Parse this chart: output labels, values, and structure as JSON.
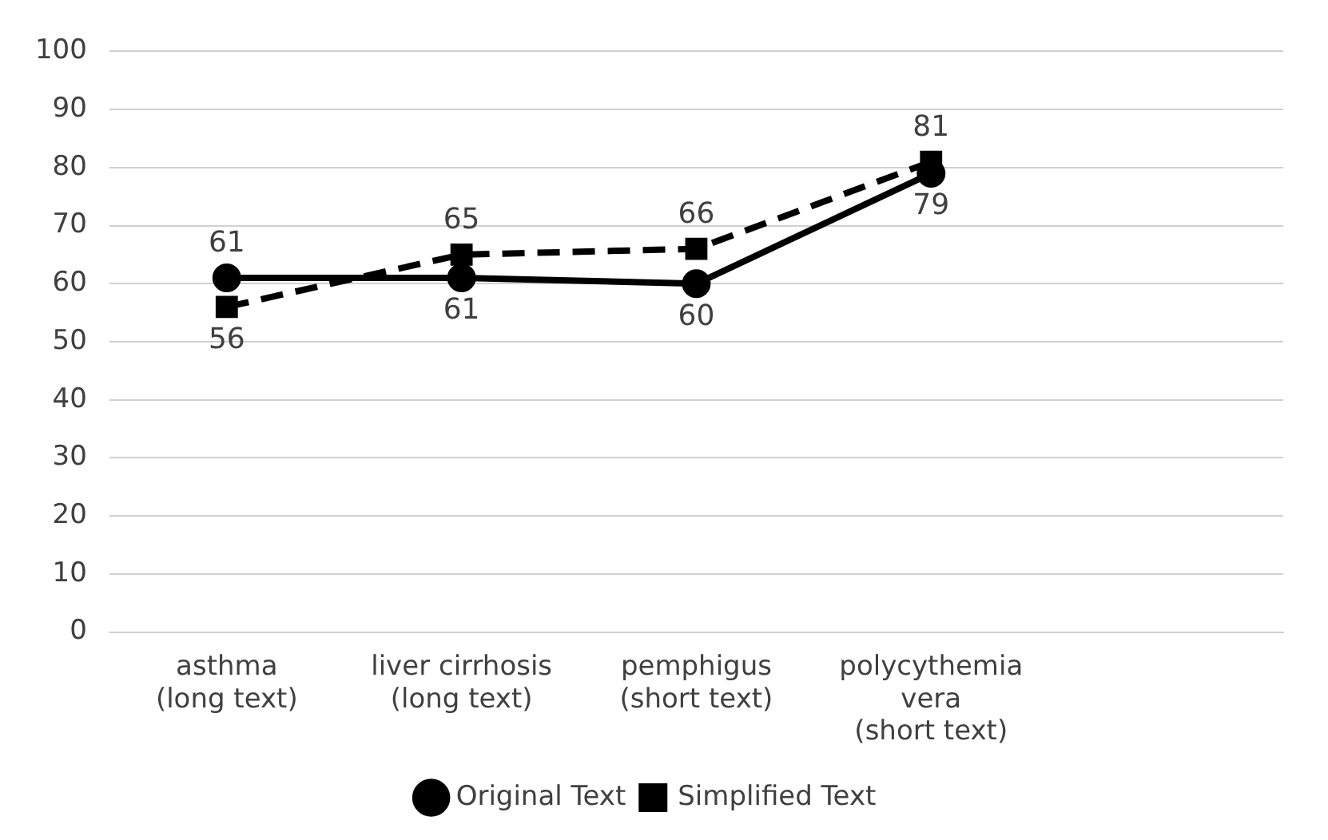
{
  "chart_data": {
    "type": "line",
    "categories": [
      "asthma\n(long text)",
      "liver cirrhosis\n(long text)",
      "pemphigus\n(short text)",
      "polycythemia\nvera\n(short text)",
      null
    ],
    "series": [
      {
        "name": "Original Text",
        "color": "#000000",
        "marker": "circle",
        "line_style": "solid",
        "values": [
          61,
          61,
          60,
          79,
          null
        ]
      },
      {
        "name": "Simplified Text",
        "color": "#000000",
        "marker": "square",
        "line_style": "dashed",
        "values": [
          56,
          65,
          66,
          81,
          null
        ]
      }
    ],
    "ylim": [
      0,
      100
    ],
    "yticks": [
      0,
      10,
      20,
      30,
      40,
      50,
      60,
      70,
      80,
      90,
      100
    ],
    "grid": "y",
    "legend": "bottom",
    "data_labels": true
  }
}
